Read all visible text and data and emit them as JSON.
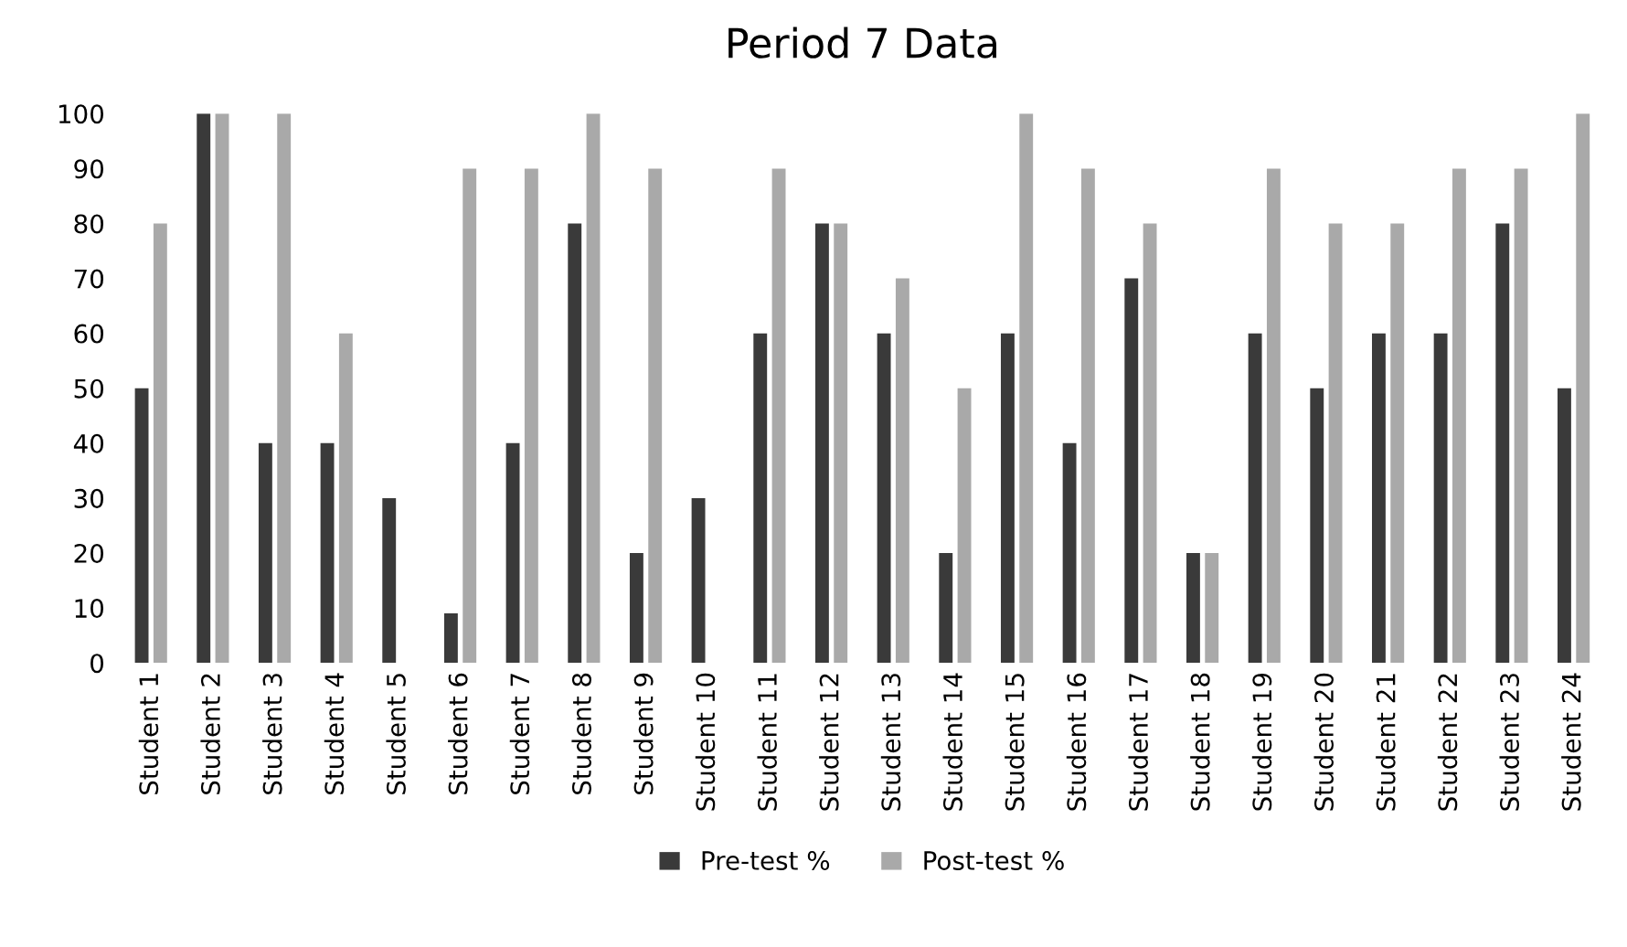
{
  "chart_data": {
    "type": "bar",
    "title": "Period 7 Data",
    "categories": [
      "Student 1",
      "Student 2",
      "Student 3",
      "Student 4",
      "Student 5",
      "Student 6",
      "Student 7",
      "Student 8",
      "Student 9",
      "Student 10",
      "Student 11",
      "Student 12",
      "Student 13",
      "Student 14",
      "Student 15",
      "Student 16",
      "Student 17",
      "Student 18",
      "Student 19",
      "Student 20",
      "Student 21",
      "Student 22",
      "Student 23",
      "Student 24"
    ],
    "series": [
      {
        "name": "Pre-test %",
        "color": "#3a3a3a",
        "values": [
          50,
          100,
          40,
          40,
          30,
          9,
          40,
          80,
          20,
          30,
          60,
          80,
          60,
          20,
          60,
          40,
          70,
          20,
          60,
          50,
          60,
          60,
          80,
          50
        ]
      },
      {
        "name": "Post-test %",
        "color": "#a9a9a9",
        "values": [
          80,
          100,
          100,
          60,
          null,
          90,
          90,
          100,
          90,
          null,
          90,
          80,
          70,
          50,
          100,
          90,
          80,
          20,
          90,
          80,
          80,
          90,
          90,
          100
        ]
      }
    ],
    "ylim": [
      0,
      100
    ],
    "yticks": [
      0,
      10,
      20,
      30,
      40,
      50,
      60,
      70,
      80,
      90,
      100
    ],
    "grid": false,
    "legend": "bottom"
  }
}
